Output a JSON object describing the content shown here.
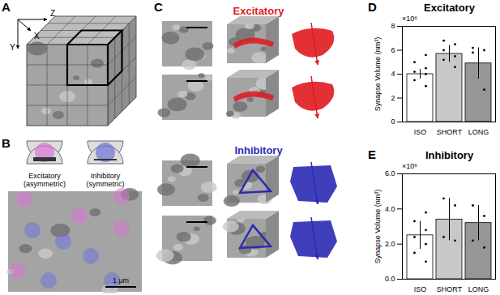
{
  "figure": {
    "panels": {
      "A": {
        "label": "A",
        "axes": [
          "Z",
          "X",
          "Y"
        ]
      },
      "B": {
        "label": "B",
        "legend": [
          {
            "name": "Excitatory",
            "subtitle": "(asymmetric)",
            "color": "#d973d4"
          },
          {
            "name": "Inhibitory",
            "subtitle": "(symmetric)",
            "color": "#6f72d8"
          }
        ],
        "scale_bar": "1 μm"
      },
      "C": {
        "label": "C",
        "groups": [
          {
            "name": "Excitatory",
            "color": "#e0191e"
          },
          {
            "name": "Inhibitory",
            "color": "#2a2ab4"
          }
        ]
      }
    }
  },
  "chart_data": [
    {
      "type": "bar",
      "panel": "D",
      "title": "Excitatory",
      "ylabel": "Synapse Volume (nm³)",
      "ylabel_multiplier": "×10⁶",
      "categories": [
        "ISO",
        "SHORT",
        "LONG"
      ],
      "values": [
        4.0,
        5.7,
        4.9
      ],
      "errors": [
        0.4,
        0.7,
        1.3
      ],
      "points": [
        [
          3.0,
          3.5,
          4.0,
          4.2,
          4.5,
          5.0,
          5.6
        ],
        [
          4.6,
          5.2,
          5.5,
          6.0,
          6.5,
          6.8
        ],
        [
          2.7,
          5.8,
          6.0,
          6.2
        ]
      ],
      "colors": [
        "#ffffff",
        "#c8c8c8",
        "#969696"
      ],
      "ylim": [
        0,
        8
      ],
      "yticks": [
        0,
        2,
        4,
        6,
        8
      ]
    },
    {
      "type": "bar",
      "panel": "E",
      "title": "Inhibitory",
      "ylabel": "Synapse Volume (nm³)",
      "ylabel_multiplier": "×10⁶",
      "categories": [
        "ISO",
        "SHORT",
        "LONG"
      ],
      "values": [
        2.5,
        3.4,
        3.2
      ],
      "errors": [
        0.8,
        1.2,
        1.0
      ],
      "points": [
        [
          1.0,
          1.5,
          2.0,
          2.4,
          2.8,
          3.3,
          3.8
        ],
        [
          2.2,
          2.4,
          4.2,
          4.6
        ],
        [
          1.8,
          2.2,
          3.6,
          4.2
        ]
      ],
      "colors": [
        "#ffffff",
        "#c8c8c8",
        "#969696"
      ],
      "ylim": [
        0,
        6
      ],
      "yticks": [
        0,
        2,
        4,
        6
      ]
    }
  ]
}
